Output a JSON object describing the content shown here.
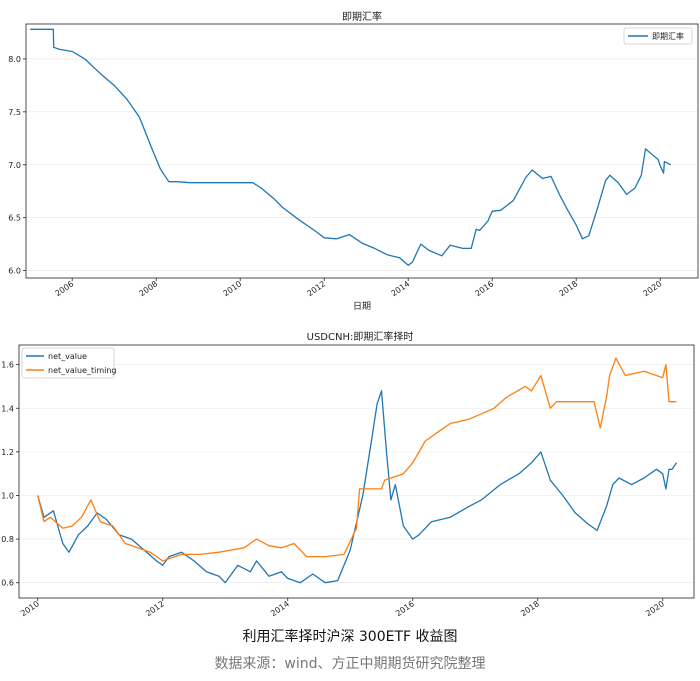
{
  "chart_data": [
    {
      "type": "line",
      "title": "即期汇率",
      "xlabel": "日期",
      "ylabel": "",
      "xlim": [
        2004.9,
        2020.9
      ],
      "ylim": [
        5.93,
        8.33
      ],
      "xticks": [
        2006,
        2008,
        2010,
        2012,
        2014,
        2016,
        2018,
        2020
      ],
      "yticks": [
        6.0,
        6.5,
        7.0,
        7.5,
        8.0
      ],
      "ytick_labels": [
        "6.0",
        "6.5",
        "7.0",
        "7.5",
        "8.0"
      ],
      "legend": "top-right",
      "series": [
        {
          "name": "即期汇率",
          "color": "#1f77b4",
          "x": [
            2005.0,
            2005.55,
            2005.56,
            2005.7,
            2006.0,
            2006.3,
            2006.7,
            2007.0,
            2007.3,
            2007.6,
            2007.9,
            2008.1,
            2008.3,
            2008.5,
            2008.8,
            2009.2,
            2009.8,
            2010.3,
            2010.5,
            2010.8,
            2011.0,
            2011.4,
            2011.8,
            2012.0,
            2012.3,
            2012.6,
            2012.9,
            2013.2,
            2013.5,
            2013.8,
            2014.0,
            2014.1,
            2014.3,
            2014.5,
            2014.8,
            2015.0,
            2015.3,
            2015.5,
            2015.62,
            2015.7,
            2015.9,
            2016.0,
            2016.2,
            2016.5,
            2016.8,
            2016.95,
            2017.2,
            2017.4,
            2017.6,
            2017.8,
            2018.0,
            2018.15,
            2018.3,
            2018.5,
            2018.7,
            2018.8,
            2019.0,
            2019.2,
            2019.4,
            2019.55,
            2019.65,
            2019.8,
            2019.95,
            2020.0,
            2020.08,
            2020.1,
            2020.25
          ],
          "y": [
            8.28,
            8.28,
            8.11,
            8.09,
            8.07,
            8.0,
            7.85,
            7.75,
            7.62,
            7.45,
            7.15,
            6.96,
            6.84,
            6.84,
            6.83,
            6.83,
            6.83,
            6.83,
            6.78,
            6.68,
            6.6,
            6.48,
            6.37,
            6.31,
            6.3,
            6.34,
            6.26,
            6.21,
            6.15,
            6.12,
            6.05,
            6.08,
            6.25,
            6.19,
            6.14,
            6.24,
            6.21,
            6.21,
            6.39,
            6.38,
            6.47,
            6.56,
            6.57,
            6.66,
            6.88,
            6.95,
            6.87,
            6.89,
            6.72,
            6.57,
            6.43,
            6.3,
            6.33,
            6.58,
            6.85,
            6.9,
            6.83,
            6.72,
            6.78,
            6.9,
            7.15,
            7.1,
            7.05,
            6.99,
            6.92,
            7.03,
            7.0
          ]
        }
      ]
    },
    {
      "type": "line",
      "title": "USDCNH:即期汇率择时",
      "xlabel": "",
      "ylabel": "",
      "xlim": [
        2009.7,
        2020.5
      ],
      "ylim": [
        0.53,
        1.69
      ],
      "xticks": [
        2010,
        2012,
        2014,
        2016,
        2018,
        2020
      ],
      "yticks": [
        0.6,
        0.8,
        1.0,
        1.2,
        1.4,
        1.6
      ],
      "ytick_labels": [
        "0.6",
        "0.8",
        "1.0",
        "1.2",
        "1.4",
        "1.6"
      ],
      "legend": "top-left",
      "series": [
        {
          "name": "net_value",
          "color": "#1f77b4",
          "x": [
            2010.0,
            2010.1,
            2010.25,
            2010.4,
            2010.5,
            2010.65,
            2010.8,
            2010.95,
            2011.1,
            2011.3,
            2011.5,
            2011.7,
            2011.9,
            2012.0,
            2012.1,
            2012.3,
            2012.5,
            2012.7,
            2012.9,
            2013.0,
            2013.2,
            2013.4,
            2013.5,
            2013.7,
            2013.9,
            2014.0,
            2014.2,
            2014.4,
            2014.6,
            2014.8,
            2015.0,
            2015.2,
            2015.35,
            2015.43,
            2015.5,
            2015.58,
            2015.65,
            2015.72,
            2015.85,
            2016.0,
            2016.1,
            2016.3,
            2016.6,
            2016.9,
            2017.1,
            2017.4,
            2017.7,
            2017.9,
            2018.05,
            2018.2,
            2018.4,
            2018.6,
            2018.8,
            2018.95,
            2019.1,
            2019.2,
            2019.3,
            2019.5,
            2019.7,
            2019.9,
            2020.0,
            2020.05,
            2020.1,
            2020.15,
            2020.22
          ],
          "y": [
            1.0,
            0.9,
            0.93,
            0.78,
            0.74,
            0.82,
            0.86,
            0.92,
            0.89,
            0.82,
            0.8,
            0.75,
            0.7,
            0.68,
            0.72,
            0.74,
            0.7,
            0.65,
            0.63,
            0.6,
            0.68,
            0.65,
            0.7,
            0.63,
            0.65,
            0.62,
            0.6,
            0.64,
            0.6,
            0.61,
            0.75,
            1.0,
            1.27,
            1.42,
            1.48,
            1.2,
            0.98,
            1.05,
            0.86,
            0.8,
            0.82,
            0.88,
            0.9,
            0.95,
            0.98,
            1.05,
            1.1,
            1.15,
            1.2,
            1.07,
            1.0,
            0.92,
            0.87,
            0.84,
            0.95,
            1.05,
            1.08,
            1.05,
            1.08,
            1.12,
            1.1,
            1.03,
            1.12,
            1.12,
            1.15
          ]
        },
        {
          "name": "net_value_timing",
          "color": "#ff7f0e",
          "x": [
            2010.0,
            2010.1,
            2010.2,
            2010.4,
            2010.55,
            2010.7,
            2010.85,
            2011.0,
            2011.2,
            2011.4,
            2011.6,
            2011.8,
            2012.0,
            2012.3,
            2012.6,
            2012.9,
            2013.1,
            2013.3,
            2013.5,
            2013.7,
            2013.9,
            2014.1,
            2014.3,
            2014.6,
            2014.9,
            2015.1,
            2015.15,
            2015.5,
            2015.55,
            2015.85,
            2016.0,
            2016.2,
            2016.4,
            2016.6,
            2016.9,
            2017.3,
            2017.5,
            2017.8,
            2017.9,
            2018.05,
            2018.1,
            2018.2,
            2018.3,
            2018.6,
            2018.9,
            2019.0,
            2019.1,
            2019.15,
            2019.25,
            2019.4,
            2019.7,
            2019.9,
            2020.0,
            2020.05,
            2020.1,
            2020.22
          ],
          "y": [
            1.0,
            0.88,
            0.9,
            0.85,
            0.86,
            0.9,
            0.98,
            0.88,
            0.86,
            0.78,
            0.76,
            0.74,
            0.7,
            0.73,
            0.73,
            0.74,
            0.75,
            0.76,
            0.8,
            0.77,
            0.76,
            0.78,
            0.72,
            0.72,
            0.73,
            0.85,
            1.03,
            1.03,
            1.07,
            1.1,
            1.15,
            1.25,
            1.29,
            1.33,
            1.35,
            1.4,
            1.45,
            1.5,
            1.48,
            1.55,
            1.5,
            1.4,
            1.43,
            1.43,
            1.43,
            1.31,
            1.45,
            1.55,
            1.63,
            1.55,
            1.57,
            1.55,
            1.54,
            1.6,
            1.43,
            1.43
          ]
        }
      ]
    }
  ],
  "caption": {
    "title": "利用汇率择时沪深 300ETF 收益图",
    "source": "数据来源：wind、方正中期期货研究院整理"
  }
}
